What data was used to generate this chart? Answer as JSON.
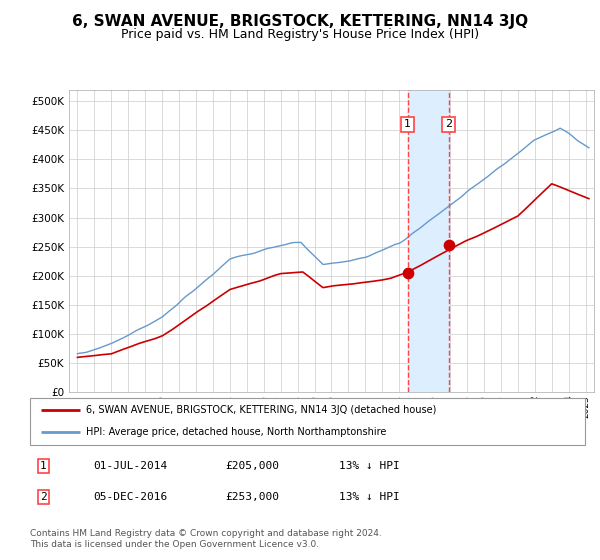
{
  "title": "6, SWAN AVENUE, BRIGSTOCK, KETTERING, NN14 3JQ",
  "subtitle": "Price paid vs. HM Land Registry's House Price Index (HPI)",
  "title_fontsize": 11,
  "subtitle_fontsize": 9,
  "ylabel_ticks": [
    "£0",
    "£50K",
    "£100K",
    "£150K",
    "£200K",
    "£250K",
    "£300K",
    "£350K",
    "£400K",
    "£450K",
    "£500K"
  ],
  "ytick_vals": [
    0,
    50000,
    100000,
    150000,
    200000,
    250000,
    300000,
    350000,
    400000,
    450000,
    500000
  ],
  "ylim": [
    0,
    520000
  ],
  "xlim_start": 1994.5,
  "xlim_end": 2025.5,
  "purchase1_x": 2014.5,
  "purchase1_y": 205000,
  "purchase2_x": 2016.92,
  "purchase2_y": 253000,
  "purchase1_label": "1",
  "purchase2_label": "2",
  "shade_start": 2014.5,
  "shade_end": 2016.92,
  "shade_color": "#ddeeff",
  "vline_color": "#ff4444",
  "dot_color": "#cc0000",
  "hpi_line_color": "#6699cc",
  "price_line_color": "#cc0000",
  "legend1_label": "6, SWAN AVENUE, BRIGSTOCK, KETTERING, NN14 3JQ (detached house)",
  "legend2_label": "HPI: Average price, detached house, North Northamptonshire",
  "table_row1": [
    "1",
    "01-JUL-2014",
    "£205,000",
    "13% ↓ HPI"
  ],
  "table_row2": [
    "2",
    "05-DEC-2016",
    "£253,000",
    "13% ↓ HPI"
  ],
  "footer": "Contains HM Land Registry data © Crown copyright and database right 2024.\nThis data is licensed under the Open Government Licence v3.0.",
  "bg_color": "#ffffff",
  "grid_color": "#cccccc"
}
